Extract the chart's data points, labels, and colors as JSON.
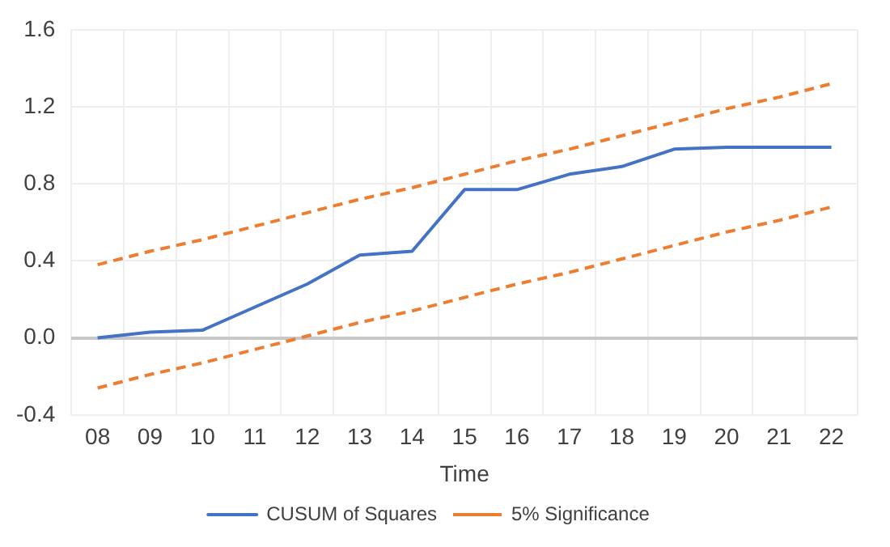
{
  "chart_data": {
    "type": "line",
    "xlabel": "Time",
    "categories": [
      "08",
      "09",
      "10",
      "11",
      "12",
      "13",
      "14",
      "15",
      "16",
      "17",
      "18",
      "19",
      "20",
      "21",
      "22"
    ],
    "ylim": [
      -0.4,
      1.6
    ],
    "yticks": [
      {
        "value": -0.4,
        "label": "-0.4"
      },
      {
        "value": 0,
        "label": "0.0"
      },
      {
        "value": 0.4,
        "label": "0.4"
      },
      {
        "value": 0.8,
        "label": "0.8"
      },
      {
        "value": 1.2,
        "label": "1.2"
      },
      {
        "value": 1.6,
        "label": "1.6"
      }
    ],
    "grid": true,
    "legend": "bottom",
    "marker": "none",
    "series": [
      {
        "name": "CUSUM of Squares",
        "color": "#4472c4",
        "line_style": "solid",
        "values": [
          0,
          0.03,
          0.04,
          0.16,
          0.28,
          0.43,
          0.45,
          0.77,
          0.77,
          0.85,
          0.89,
          0.98,
          0.99,
          0.99,
          0.99
        ]
      },
      {
        "name": "5% Significance",
        "color": "#ed7d31",
        "line_style": "dashed",
        "values": [
          0.38,
          0.45,
          0.51,
          0.58,
          0.65,
          0.72,
          0.78,
          0.85,
          0.92,
          0.98,
          1.05,
          1.12,
          1.19,
          1.25,
          1.32
        ]
      },
      {
        "color": "#ed7d31",
        "line_style": "dashed",
        "values": [
          -0.26,
          -0.19,
          -0.13,
          -0.06,
          0.01,
          0.08,
          0.14,
          0.21,
          0.28,
          0.34,
          0.41,
          0.48,
          0.55,
          0.61,
          0.68
        ]
      }
    ]
  }
}
